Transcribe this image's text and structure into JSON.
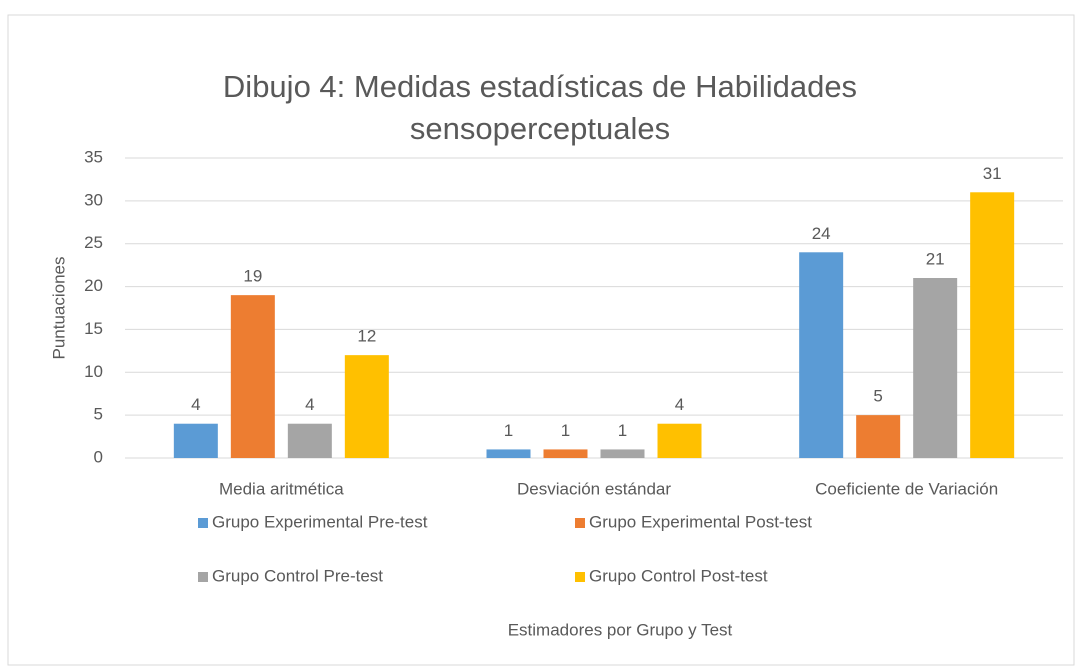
{
  "chart_data": {
    "type": "bar",
    "title": "Dibujo 4: Medidas estadísticas de Habilidades sensoperceptuales",
    "x_label": "Estimadores por Grupo y Test",
    "y_label": "Puntuaciones",
    "categories": [
      "Media aritmética",
      "Desviación estándar",
      "Coeficiente de Variación"
    ],
    "series": [
      {
        "name": "Grupo Experimental Pre-test",
        "color": "#5b9bd5",
        "values": [
          4,
          1,
          24
        ]
      },
      {
        "name": "Grupo Experimental Post-test",
        "color": "#ed7d31",
        "values": [
          19,
          1,
          5
        ]
      },
      {
        "name": "Grupo Control Pre-test",
        "color": "#a5a5a5",
        "values": [
          4,
          1,
          21
        ]
      },
      {
        "name": "Grupo Control Post-test",
        "color": "#ffc000",
        "values": [
          12,
          4,
          31
        ]
      }
    ],
    "ylim": [
      0,
      35
    ],
    "yticks": [
      0,
      5,
      10,
      15,
      20,
      25,
      30,
      35
    ],
    "grid": true,
    "legend": "bottom"
  }
}
